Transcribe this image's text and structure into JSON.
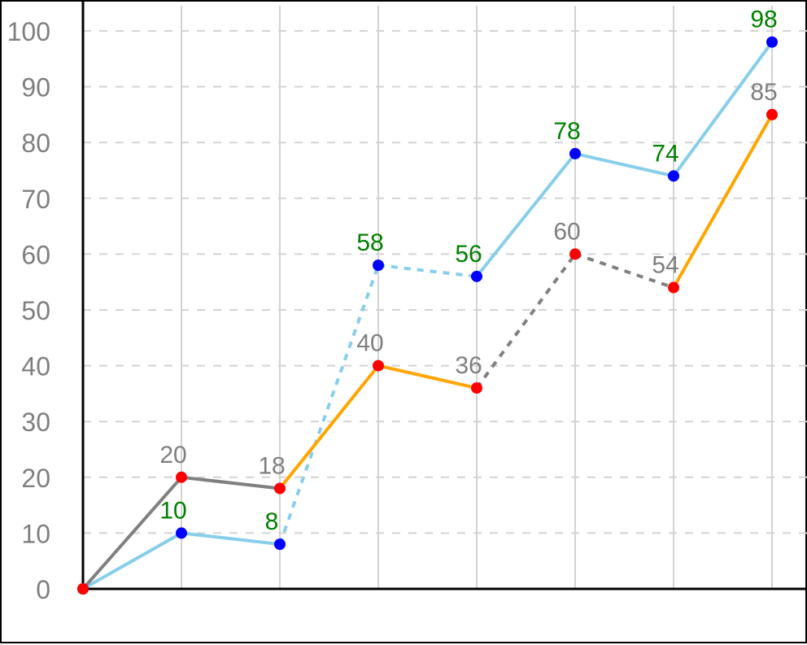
{
  "chart_data": {
    "type": "line",
    "x": [
      0,
      1,
      2,
      3,
      4,
      5,
      6,
      7
    ],
    "ylim": [
      0,
      100
    ],
    "yticks": [
      0,
      10,
      20,
      30,
      40,
      50,
      60,
      70,
      80,
      90,
      100
    ],
    "grid": {
      "x": "solid-light-gray",
      "y": "dashed-light-gray"
    },
    "legend": "none",
    "series": [
      {
        "values": [
          0,
          10,
          8,
          58,
          56,
          78,
          74,
          98
        ],
        "point_color": "#0000ff",
        "label_color": "#008000",
        "segments": [
          {
            "color": "#87ceeb",
            "dashed": false
          },
          {
            "color": "#87ceeb",
            "dashed": false
          },
          {
            "color": "#87ceeb",
            "dashed": true
          },
          {
            "color": "#87ceeb",
            "dashed": true
          },
          {
            "color": "#87ceeb",
            "dashed": false
          },
          {
            "color": "#87ceeb",
            "dashed": false
          },
          {
            "color": "#87ceeb",
            "dashed": false
          }
        ]
      },
      {
        "values": [
          0,
          20,
          18,
          40,
          36,
          60,
          54,
          85
        ],
        "point_color": "#ff0000",
        "label_color": "#7f7f7f",
        "segments": [
          {
            "color": "#808080",
            "dashed": false
          },
          {
            "color": "#808080",
            "dashed": false
          },
          {
            "color": "#ffa500",
            "dashed": false
          },
          {
            "color": "#ffa500",
            "dashed": false
          },
          {
            "color": "#808080",
            "dashed": true
          },
          {
            "color": "#808080",
            "dashed": true
          },
          {
            "color": "#ffa500",
            "dashed": false
          }
        ]
      }
    ],
    "data_labels": [
      "",
      "10",
      "8",
      "58",
      "56",
      "78",
      "74",
      "98"
    ],
    "data_labels_2": [
      "",
      "20",
      "18",
      "40",
      "36",
      "60",
      "54",
      "85"
    ]
  }
}
